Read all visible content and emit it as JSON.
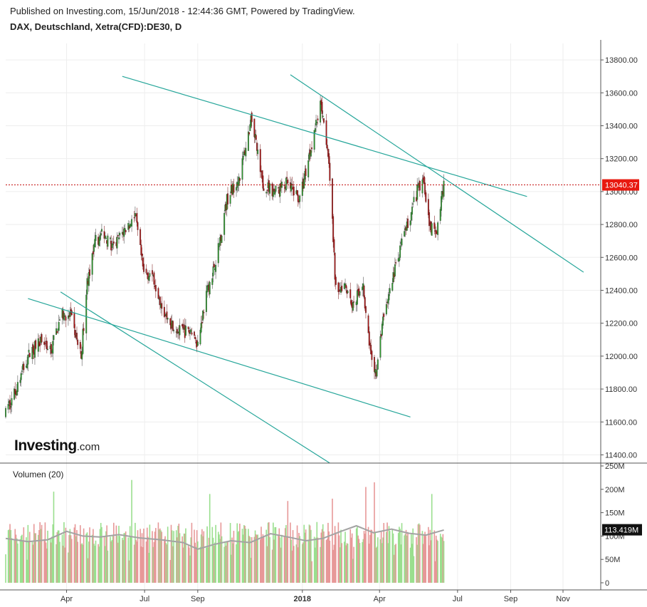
{
  "header": {
    "published": "Published on Investing.com, 15/Jun/2018 - 12:44:36 GMT, Powered by TradingView.",
    "symbol": "DAX, Deutschland, Xetra(CFD):DE30, D"
  },
  "logo": {
    "main": "Investing",
    "suffix": ".com"
  },
  "colors": {
    "up": "#2e9b2e",
    "down": "#b01515",
    "vol_up": "#9adf8e",
    "vol_down": "#e79898",
    "trendline": "#26a69a",
    "price_line": "#c41212",
    "grid": "#eeeeee",
    "vol_ma": "#a3a3a3"
  },
  "chart_data": {
    "type": "candlestick",
    "price_axis": {
      "ticks": [
        "13800.00",
        "13600.00",
        "13400.00",
        "13200.00",
        "13000.00",
        "12800.00",
        "12600.00",
        "12400.00",
        "12200.00",
        "12000.00",
        "11800.00",
        "11600.00",
        "11400.00"
      ],
      "range": [
        11350,
        13900
      ]
    },
    "current_price": {
      "value": 13040.37,
      "label": "13040.37"
    },
    "x_axis": {
      "labels": [
        {
          "text": "Apr",
          "date": "2017-04-01"
        },
        {
          "text": "Jul",
          "date": "2017-07-01"
        },
        {
          "text": "Sep",
          "date": "2017-09-01"
        },
        {
          "text": "2018",
          "date": "2018-01-01",
          "bold": true
        },
        {
          "text": "Apr",
          "date": "2018-04-01"
        },
        {
          "text": "Jul",
          "date": "2018-07-01"
        },
        {
          "text": "Sep",
          "date": "2018-09-01"
        },
        {
          "text": "Nov",
          "date": "2018-11-01"
        }
      ],
      "range": [
        "2017-01-20",
        "2018-12-15"
      ]
    },
    "price_path": [
      [
        "2017-01-20",
        11650
      ],
      [
        "2017-02-01",
        11800
      ],
      [
        "2017-02-15",
        12000
      ],
      [
        "2017-03-01",
        12100
      ],
      [
        "2017-03-15",
        12050
      ],
      [
        "2017-03-25",
        12250
      ],
      [
        "2017-04-05",
        12250
      ],
      [
        "2017-04-18",
        12000
      ],
      [
        "2017-04-25",
        12450
      ],
      [
        "2017-05-05",
        12700
      ],
      [
        "2017-05-15",
        12750
      ],
      [
        "2017-05-25",
        12650
      ],
      [
        "2017-06-05",
        12750
      ],
      [
        "2017-06-20",
        12850
      ],
      [
        "2017-06-30",
        12500
      ],
      [
        "2017-07-10",
        12500
      ],
      [
        "2017-07-25",
        12250
      ],
      [
        "2017-08-10",
        12150
      ],
      [
        "2017-08-25",
        12150
      ],
      [
        "2017-09-01",
        12080
      ],
      [
        "2017-09-10",
        12350
      ],
      [
        "2017-09-25",
        12650
      ],
      [
        "2017-10-05",
        12950
      ],
      [
        "2017-10-20",
        13100
      ],
      [
        "2017-11-03",
        13450
      ],
      [
        "2017-11-15",
        13050
      ],
      [
        "2017-11-30",
        13000
      ],
      [
        "2017-12-15",
        13050
      ],
      [
        "2017-12-29",
        12950
      ],
      [
        "2018-01-10",
        13250
      ],
      [
        "2018-01-23",
        13550
      ],
      [
        "2018-02-01",
        13200
      ],
      [
        "2018-02-09",
        12400
      ],
      [
        "2018-02-20",
        12450
      ],
      [
        "2018-03-01",
        12300
      ],
      [
        "2018-03-12",
        12450
      ],
      [
        "2018-03-23",
        11950
      ],
      [
        "2018-03-28",
        11900
      ],
      [
        "2018-04-06",
        12250
      ],
      [
        "2018-04-20",
        12550
      ],
      [
        "2018-05-04",
        12800
      ],
      [
        "2018-05-15",
        13000
      ],
      [
        "2018-05-22",
        13100
      ],
      [
        "2018-05-29",
        12800
      ],
      [
        "2018-06-06",
        12750
      ],
      [
        "2018-06-15",
        13040
      ]
    ],
    "trendlines": [
      {
        "from": [
          "2017-06-05",
          13700
        ],
        "to": [
          "2018-09-20",
          12970
        ]
      },
      {
        "from": [
          "2017-12-18",
          13710
        ],
        "to": [
          "2018-11-25",
          12510
        ]
      },
      {
        "from": [
          "2017-02-15",
          12350
        ],
        "to": [
          "2018-05-07",
          11630
        ]
      },
      {
        "from": [
          "2017-03-25",
          12390
        ],
        "to": [
          "2018-02-02",
          11350
        ]
      }
    ],
    "volume": {
      "label": "Volumen (20)",
      "ticks": [
        "250M",
        "200M",
        "150M",
        "100M",
        "50M",
        "0"
      ],
      "range": [
        0,
        250
      ],
      "current": {
        "value": 113.419,
        "label": "113.419M"
      },
      "ma_path": [
        [
          "2017-01-20",
          95
        ],
        [
          "2017-02-15",
          88
        ],
        [
          "2017-03-10",
          92
        ],
        [
          "2017-04-01",
          110
        ],
        [
          "2017-04-20",
          100
        ],
        [
          "2017-05-10",
          98
        ],
        [
          "2017-06-01",
          103
        ],
        [
          "2017-06-25",
          96
        ],
        [
          "2017-07-20",
          92
        ],
        [
          "2017-08-15",
          86
        ],
        [
          "2017-09-01",
          72
        ],
        [
          "2017-09-20",
          82
        ],
        [
          "2017-10-10",
          90
        ],
        [
          "2017-11-01",
          86
        ],
        [
          "2017-11-25",
          105
        ],
        [
          "2017-12-15",
          98
        ],
        [
          "2018-01-05",
          90
        ],
        [
          "2018-01-25",
          95
        ],
        [
          "2018-02-15",
          110
        ],
        [
          "2018-03-05",
          122
        ],
        [
          "2018-03-25",
          107
        ],
        [
          "2018-04-15",
          115
        ],
        [
          "2018-05-05",
          106
        ],
        [
          "2018-05-25",
          102
        ],
        [
          "2018-06-15",
          113
        ]
      ],
      "big_days": [
        [
          "2017-03-17",
          195
        ],
        [
          "2017-06-16",
          220
        ],
        [
          "2017-09-15",
          190
        ],
        [
          "2017-12-15",
          175
        ],
        [
          "2018-03-16",
          205
        ],
        [
          "2018-02-05",
          180
        ],
        [
          "2018-06-01",
          190
        ],
        [
          "2018-03-26",
          215
        ]
      ]
    }
  }
}
